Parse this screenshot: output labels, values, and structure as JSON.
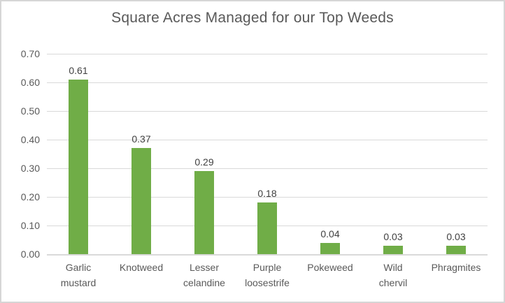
{
  "chart_data": {
    "type": "bar",
    "title": "Square Acres Managed for our Top Weeds",
    "categories": [
      "Garlic mustard",
      "Knotweed",
      "Lesser celandine",
      "Purple loosestrife",
      "Pokeweed",
      "Wild chervil",
      "Phragmites"
    ],
    "values": [
      0.61,
      0.37,
      0.29,
      0.18,
      0.04,
      0.03,
      0.03
    ],
    "data_labels": [
      "0.61",
      "0.37",
      "0.29",
      "0.18",
      "0.04",
      "0.03",
      "0.03"
    ],
    "y_ticks": [
      "0.00",
      "0.10",
      "0.20",
      "0.30",
      "0.40",
      "0.50",
      "0.60",
      "0.70"
    ],
    "ylim": [
      0,
      0.7
    ],
    "xlabel": "",
    "ylabel": "",
    "grid": true,
    "legend": "none",
    "colors": {
      "bar": "#70AD47",
      "gridline": "#d9d9d9",
      "axis_line": "#d9d9d9",
      "title_text": "#595959",
      "axis_text": "#595959",
      "data_label_text": "#404040",
      "frame_border": "#d6d6d6",
      "background": "#ffffff"
    }
  }
}
